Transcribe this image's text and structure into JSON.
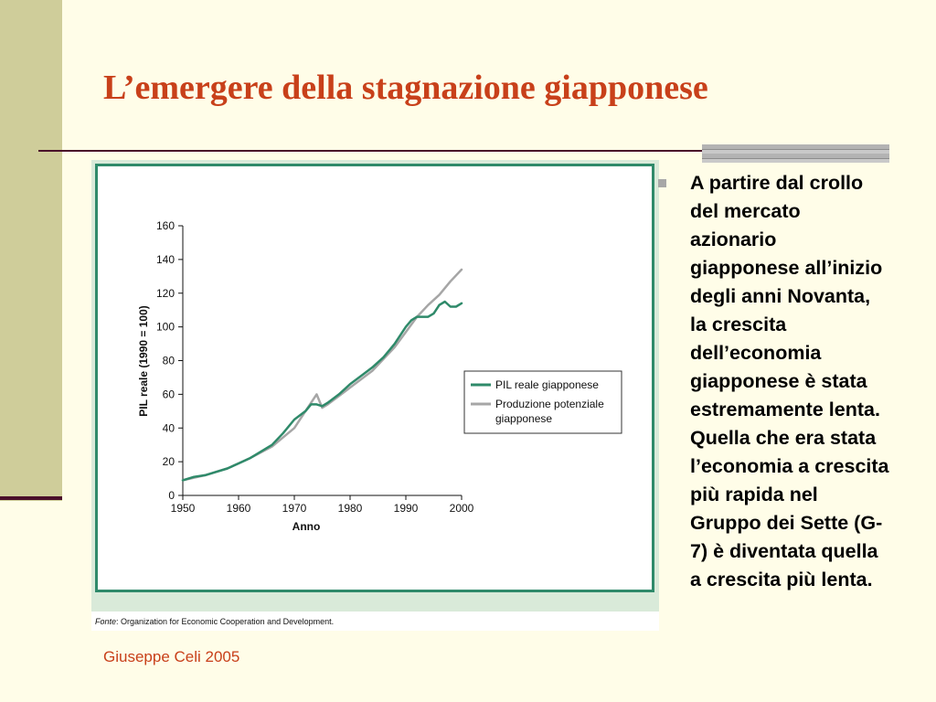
{
  "slide": {
    "title": "L’emergere della stagnazione giapponese",
    "bullet_lines": [
      "A partire dal crollo",
      "del mercato",
      "azionario",
      "giapponese all’inizio",
      "degli anni Novanta,",
      "la crescita",
      "dell’economia",
      "giapponese è stata",
      "estremamente lenta.",
      "Quella che era stata",
      "l’economia a crescita",
      "più rapida nel",
      "Gruppo dei Sette (G-",
      "7) è diventata quella",
      "a crescita più lenta."
    ],
    "source_label": "Fonte",
    "source_text": ": Organization for Economic Cooperation and Development.",
    "footer": "Giuseppe Celi 2005",
    "colors": {
      "title": "#c8401a",
      "accent_bar": "#cfcd9a",
      "rule": "#4a0f2a"
    }
  },
  "chart_data": {
    "type": "line",
    "xlabel": "Anno",
    "ylabel": "PIL reale (1990 = 100)",
    "xlim": [
      1950,
      2000
    ],
    "ylim": [
      0,
      160
    ],
    "xticks": [
      1950,
      1960,
      1970,
      1980,
      1990,
      2000
    ],
    "yticks": [
      0,
      20,
      40,
      60,
      80,
      100,
      120,
      140,
      160
    ],
    "legend_placement": "center-right",
    "series": [
      {
        "name": "PIL reale giapponese",
        "color": "#2f8a6a",
        "x": [
          1950,
          1952,
          1954,
          1956,
          1958,
          1960,
          1962,
          1964,
          1966,
          1968,
          1970,
          1972,
          1973,
          1974,
          1975,
          1976,
          1978,
          1980,
          1982,
          1984,
          1986,
          1988,
          1990,
          1991,
          1992,
          1993,
          1994,
          1995,
          1996,
          1997,
          1998,
          1999,
          2000
        ],
        "y": [
          9,
          11,
          12,
          14,
          16,
          19,
          22,
          26,
          30,
          37,
          45,
          50,
          54,
          54,
          53,
          55,
          60,
          66,
          71,
          76,
          82,
          90,
          100,
          104,
          106,
          106,
          106,
          108,
          113,
          115,
          112,
          112,
          114
        ]
      },
      {
        "name": "Produzione potenziale giapponese",
        "color": "#a6a6a6",
        "x": [
          1950,
          1954,
          1958,
          1962,
          1966,
          1970,
          1972,
          1974,
          1975,
          1976,
          1978,
          1980,
          1984,
          1988,
          1990,
          1992,
          1994,
          1996,
          1998,
          2000
        ],
        "y": [
          9,
          12,
          16,
          22,
          29,
          40,
          50,
          60,
          52,
          54,
          59,
          64,
          74,
          88,
          97,
          106,
          113,
          119,
          127,
          134
        ]
      }
    ]
  }
}
